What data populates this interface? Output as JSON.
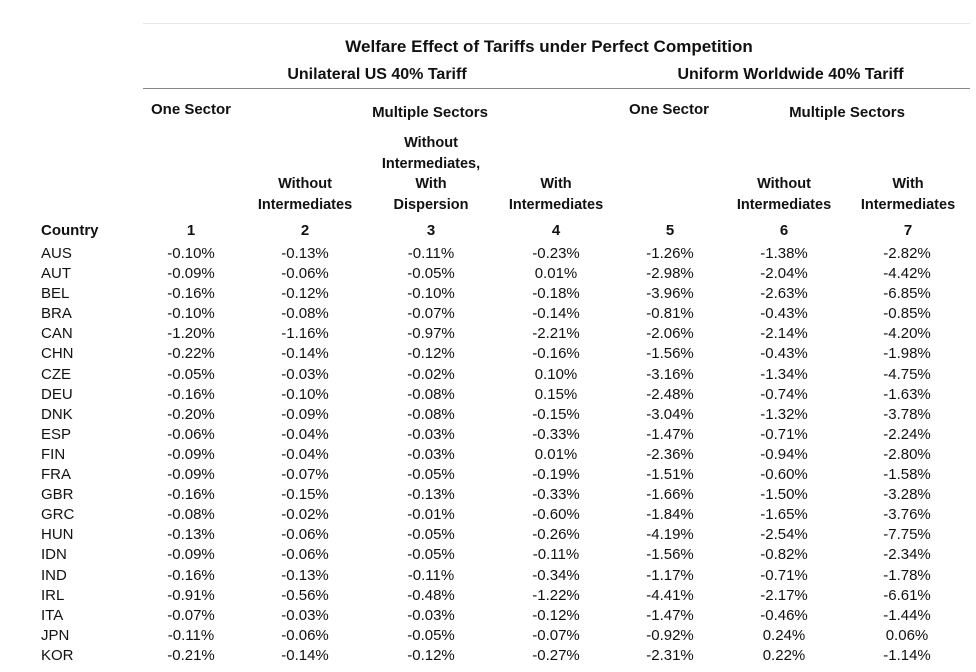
{
  "table": {
    "title": "Welfare Effect of Tariffs under Perfect Competition",
    "groups": [
      "Unilateral US 40% Tariff",
      "Uniform Worldwide 40% Tariff"
    ],
    "subgroups": {
      "uni_one": "One Sector",
      "uni_multi": "Multiple Sectors",
      "world_one": "One Sector",
      "world_multi": "Multiple Sectors"
    },
    "col_headers": {
      "c2": [
        "Without",
        "Intermediates"
      ],
      "c3": [
        "Without",
        "Intermediates,",
        "With",
        "Dispersion"
      ],
      "c4": [
        "With",
        "Intermediates"
      ],
      "c6": [
        "Without",
        "Intermediates"
      ],
      "c7": [
        "With",
        "Intermediates"
      ]
    },
    "country_label": "Country",
    "col_numbers": [
      "1",
      "2",
      "3",
      "4",
      "5",
      "6",
      "7"
    ],
    "rows": [
      [
        "AUS",
        "-0.10%",
        "-0.13%",
        "-0.11%",
        "-0.23%",
        "-1.26%",
        "-1.38%",
        "-2.82%"
      ],
      [
        "AUT",
        "-0.09%",
        "-0.06%",
        "-0.05%",
        "0.01%",
        "-2.98%",
        "-2.04%",
        "-4.42%"
      ],
      [
        "BEL",
        "-0.16%",
        "-0.12%",
        "-0.10%",
        "-0.18%",
        "-3.96%",
        "-2.63%",
        "-6.85%"
      ],
      [
        "BRA",
        "-0.10%",
        "-0.08%",
        "-0.07%",
        "-0.14%",
        "-0.81%",
        "-0.43%",
        "-0.85%"
      ],
      [
        "CAN",
        "-1.20%",
        "-1.16%",
        "-0.97%",
        "-2.21%",
        "-2.06%",
        "-2.14%",
        "-4.20%"
      ],
      [
        "CHN",
        "-0.22%",
        "-0.14%",
        "-0.12%",
        "-0.16%",
        "-1.56%",
        "-0.43%",
        "-1.98%"
      ],
      [
        "CZE",
        "-0.05%",
        "-0.03%",
        "-0.02%",
        "0.10%",
        "-3.16%",
        "-1.34%",
        "-4.75%"
      ],
      [
        "DEU",
        "-0.16%",
        "-0.10%",
        "-0.08%",
        "0.15%",
        "-2.48%",
        "-0.74%",
        "-1.63%"
      ],
      [
        "DNK",
        "-0.20%",
        "-0.09%",
        "-0.08%",
        "-0.15%",
        "-3.04%",
        "-1.32%",
        "-3.78%"
      ],
      [
        "ESP",
        "-0.06%",
        "-0.04%",
        "-0.03%",
        "-0.33%",
        "-1.47%",
        "-0.71%",
        "-2.24%"
      ],
      [
        "FIN",
        "-0.09%",
        "-0.04%",
        "-0.03%",
        "0.01%",
        "-2.36%",
        "-0.94%",
        "-2.80%"
      ],
      [
        "FRA",
        "-0.09%",
        "-0.07%",
        "-0.05%",
        "-0.19%",
        "-1.51%",
        "-0.60%",
        "-1.58%"
      ],
      [
        "GBR",
        "-0.16%",
        "-0.15%",
        "-0.13%",
        "-0.33%",
        "-1.66%",
        "-1.50%",
        "-3.28%"
      ],
      [
        "GRC",
        "-0.08%",
        "-0.02%",
        "-0.01%",
        "-0.60%",
        "-1.84%",
        "-1.65%",
        "-3.76%"
      ],
      [
        "HUN",
        "-0.13%",
        "-0.06%",
        "-0.05%",
        "-0.26%",
        "-4.19%",
        "-2.54%",
        "-7.75%"
      ],
      [
        "IDN",
        "-0.09%",
        "-0.06%",
        "-0.05%",
        "-0.11%",
        "-1.56%",
        "-0.82%",
        "-2.34%"
      ],
      [
        "IND",
        "-0.16%",
        "-0.13%",
        "-0.11%",
        "-0.34%",
        "-1.17%",
        "-0.71%",
        "-1.78%"
      ],
      [
        "IRL",
        "-0.91%",
        "-0.56%",
        "-0.48%",
        "-1.22%",
        "-4.41%",
        "-2.17%",
        "-6.61%"
      ],
      [
        "ITA",
        "-0.07%",
        "-0.03%",
        "-0.03%",
        "-0.12%",
        "-1.47%",
        "-0.46%",
        "-1.44%"
      ],
      [
        "JPN",
        "-0.11%",
        "-0.06%",
        "-0.05%",
        "-0.07%",
        "-0.92%",
        "0.24%",
        "0.06%"
      ],
      [
        "KOR",
        "-0.21%",
        "-0.14%",
        "-0.12%",
        "-0.27%",
        "-2.31%",
        "0.22%",
        "-1.14%"
      ]
    ]
  }
}
